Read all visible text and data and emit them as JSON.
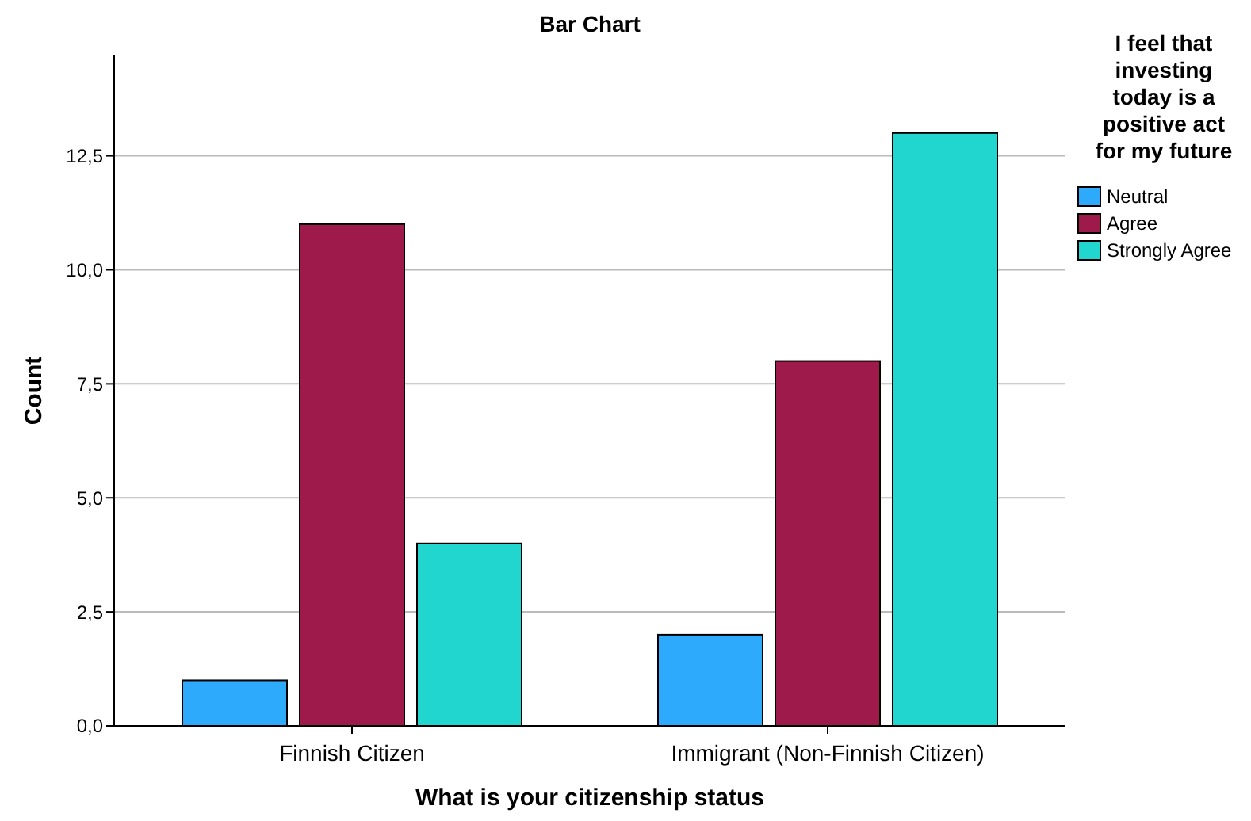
{
  "chart_data": {
    "type": "bar",
    "title": "Bar Chart",
    "xlabel": "What is your citizenship status",
    "ylabel": "Count",
    "legend_title": "I feel that investing today is a positive act for my future",
    "categories": [
      "Finnish Citizen",
      "Immigrant (Non-Finnish Citizen)"
    ],
    "series": [
      {
        "name": "Neutral",
        "color": "#2eaafc",
        "values": [
          1,
          2
        ]
      },
      {
        "name": "Agree",
        "color": "#9e1a4a",
        "values": [
          11,
          8
        ]
      },
      {
        "name": "Strongly Agree",
        "color": "#22d6d0",
        "values": [
          4,
          13
        ]
      }
    ],
    "ylim": [
      0,
      14.7
    ],
    "yticks": [
      {
        "value": 0,
        "label": "0,0"
      },
      {
        "value": 2.5,
        "label": "2,5"
      },
      {
        "value": 5,
        "label": "5,0"
      },
      {
        "value": 7.5,
        "label": "7,5"
      },
      {
        "value": 10,
        "label": "10,0"
      },
      {
        "value": 12.5,
        "label": "12,5"
      }
    ],
    "grid": "y",
    "legend": "right"
  }
}
